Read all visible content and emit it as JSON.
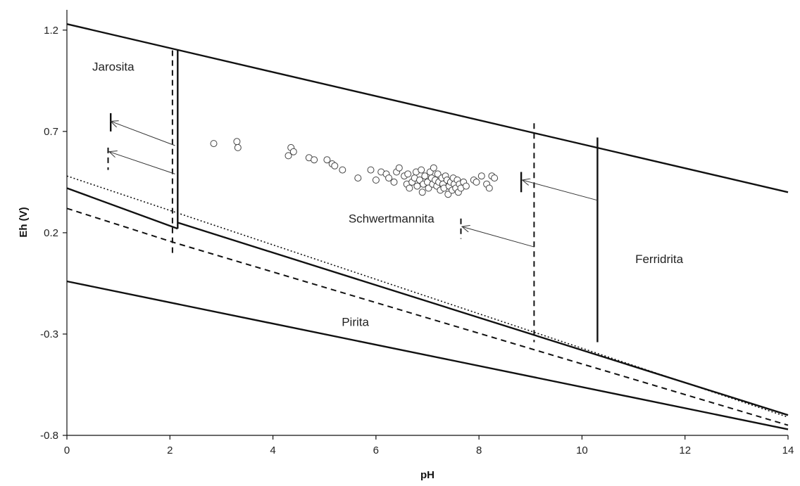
{
  "chart_data": {
    "type": "scatter",
    "title": "",
    "xlabel": "pH",
    "ylabel": "Eh (V)",
    "xlim": [
      0,
      14
    ],
    "ylim": [
      -0.8,
      1.3
    ],
    "xticks": [
      0,
      2,
      4,
      6,
      8,
      10,
      12,
      14
    ],
    "xtick_labels": [
      "0",
      "2",
      "4",
      "6",
      "8",
      "10",
      "12",
      "14"
    ],
    "yticks": [
      -0.8,
      -0.3,
      0.2,
      0.7,
      1.2
    ],
    "ytick_labels": [
      "-0.8",
      "-0.3",
      "0.2",
      "0.7",
      "1.2"
    ],
    "grid": false,
    "legend": null,
    "colors": {
      "line": "#111111",
      "points": "#444444"
    },
    "lines": [
      {
        "style": "solid",
        "points": [
          [
            0,
            1.23
          ],
          [
            14,
            0.4
          ]
        ]
      },
      {
        "style": "solid",
        "points": [
          [
            0,
            -0.04
          ],
          [
            14,
            -0.77
          ]
        ]
      },
      {
        "style": "solid",
        "points": [
          [
            0,
            0.42
          ],
          [
            2.15,
            0.22
          ]
        ]
      },
      {
        "style": "solid",
        "points": [
          [
            2.15,
            0.25
          ],
          [
            14,
            -0.7
          ]
        ]
      },
      {
        "style": "dotted",
        "points": [
          [
            0,
            0.48
          ],
          [
            14,
            -0.71
          ]
        ]
      },
      {
        "style": "dashed",
        "points": [
          [
            0,
            0.32
          ],
          [
            2.1,
            0.15
          ],
          [
            14,
            -0.75
          ]
        ]
      },
      {
        "style": "solid",
        "points": [
          [
            2.15,
            1.1
          ],
          [
            2.15,
            0.22
          ]
        ]
      },
      {
        "style": "dashed",
        "points": [
          [
            2.05,
            1.1
          ],
          [
            2.05,
            0.1
          ]
        ]
      },
      {
        "style": "dashed",
        "points": [
          [
            9.07,
            0.74
          ],
          [
            9.07,
            -0.34
          ]
        ]
      },
      {
        "style": "solid",
        "points": [
          [
            10.3,
            0.67
          ],
          [
            10.3,
            -0.34
          ]
        ]
      },
      {
        "style": "solid",
        "points": [
          [
            0.85,
            0.79
          ],
          [
            0.85,
            0.7
          ]
        ]
      },
      {
        "style": "dashed",
        "points": [
          [
            0.8,
            0.62
          ],
          [
            0.8,
            0.51
          ]
        ]
      },
      {
        "style": "solid",
        "points": [
          [
            8.82,
            0.5
          ],
          [
            8.82,
            0.4
          ]
        ]
      },
      {
        "style": "dashed",
        "points": [
          [
            7.65,
            0.27
          ],
          [
            7.65,
            0.17
          ]
        ]
      }
    ],
    "arrows": [
      {
        "from": [
          2.1,
          0.63
        ],
        "to": [
          0.85,
          0.75
        ]
      },
      {
        "from": [
          2.1,
          0.49
        ],
        "to": [
          0.82,
          0.6
        ]
      },
      {
        "from": [
          10.3,
          0.36
        ],
        "to": [
          8.84,
          0.46
        ]
      },
      {
        "from": [
          9.07,
          0.13
        ],
        "to": [
          7.67,
          0.23
        ]
      }
    ],
    "points": [
      [
        2.85,
        0.64
      ],
      [
        3.3,
        0.65
      ],
      [
        3.32,
        0.62
      ],
      [
        4.3,
        0.58
      ],
      [
        4.35,
        0.62
      ],
      [
        4.4,
        0.6
      ],
      [
        4.7,
        0.57
      ],
      [
        4.8,
        0.56
      ],
      [
        5.05,
        0.56
      ],
      [
        5.15,
        0.54
      ],
      [
        5.2,
        0.53
      ],
      [
        5.35,
        0.51
      ],
      [
        5.65,
        0.47
      ],
      [
        5.9,
        0.51
      ],
      [
        6.0,
        0.46
      ],
      [
        6.1,
        0.5
      ],
      [
        6.2,
        0.49
      ],
      [
        6.25,
        0.47
      ],
      [
        6.35,
        0.45
      ],
      [
        6.4,
        0.5
      ],
      [
        6.45,
        0.52
      ],
      [
        6.55,
        0.48
      ],
      [
        6.6,
        0.44
      ],
      [
        6.62,
        0.49
      ],
      [
        6.65,
        0.42
      ],
      [
        6.7,
        0.45
      ],
      [
        6.75,
        0.47
      ],
      [
        6.78,
        0.5
      ],
      [
        6.8,
        0.43
      ],
      [
        6.85,
        0.46
      ],
      [
        6.88,
        0.51
      ],
      [
        6.9,
        0.4
      ],
      [
        6.92,
        0.44
      ],
      [
        6.95,
        0.48
      ],
      [
        7.0,
        0.45
      ],
      [
        7.02,
        0.42
      ],
      [
        7.05,
        0.5
      ],
      [
        7.08,
        0.47
      ],
      [
        7.1,
        0.44
      ],
      [
        7.12,
        0.52
      ],
      [
        7.15,
        0.46
      ],
      [
        7.18,
        0.43
      ],
      [
        7.2,
        0.49
      ],
      [
        7.22,
        0.45
      ],
      [
        7.25,
        0.41
      ],
      [
        7.28,
        0.47
      ],
      [
        7.3,
        0.44
      ],
      [
        7.32,
        0.42
      ],
      [
        7.35,
        0.48
      ],
      [
        7.38,
        0.46
      ],
      [
        7.4,
        0.39
      ],
      [
        7.42,
        0.43
      ],
      [
        7.45,
        0.45
      ],
      [
        7.48,
        0.41
      ],
      [
        7.5,
        0.47
      ],
      [
        7.52,
        0.44
      ],
      [
        7.55,
        0.42
      ],
      [
        7.58,
        0.46
      ],
      [
        7.6,
        0.4
      ],
      [
        7.62,
        0.44
      ],
      [
        7.65,
        0.42
      ],
      [
        7.7,
        0.45
      ],
      [
        7.75,
        0.43
      ],
      [
        7.9,
        0.46
      ],
      [
        7.95,
        0.45
      ],
      [
        8.05,
        0.48
      ],
      [
        8.15,
        0.44
      ],
      [
        8.2,
        0.42
      ],
      [
        8.25,
        0.48
      ],
      [
        8.3,
        0.47
      ]
    ],
    "annotations": [
      {
        "text": "Jarosita",
        "x": 0.9,
        "y": 1.0
      },
      {
        "text": "Schwertmannita",
        "x": 6.3,
        "y": 0.25
      },
      {
        "text": "Ferridrita",
        "x": 11.5,
        "y": 0.05
      },
      {
        "text": "Pirita",
        "x": 5.6,
        "y": -0.26
      }
    ]
  }
}
